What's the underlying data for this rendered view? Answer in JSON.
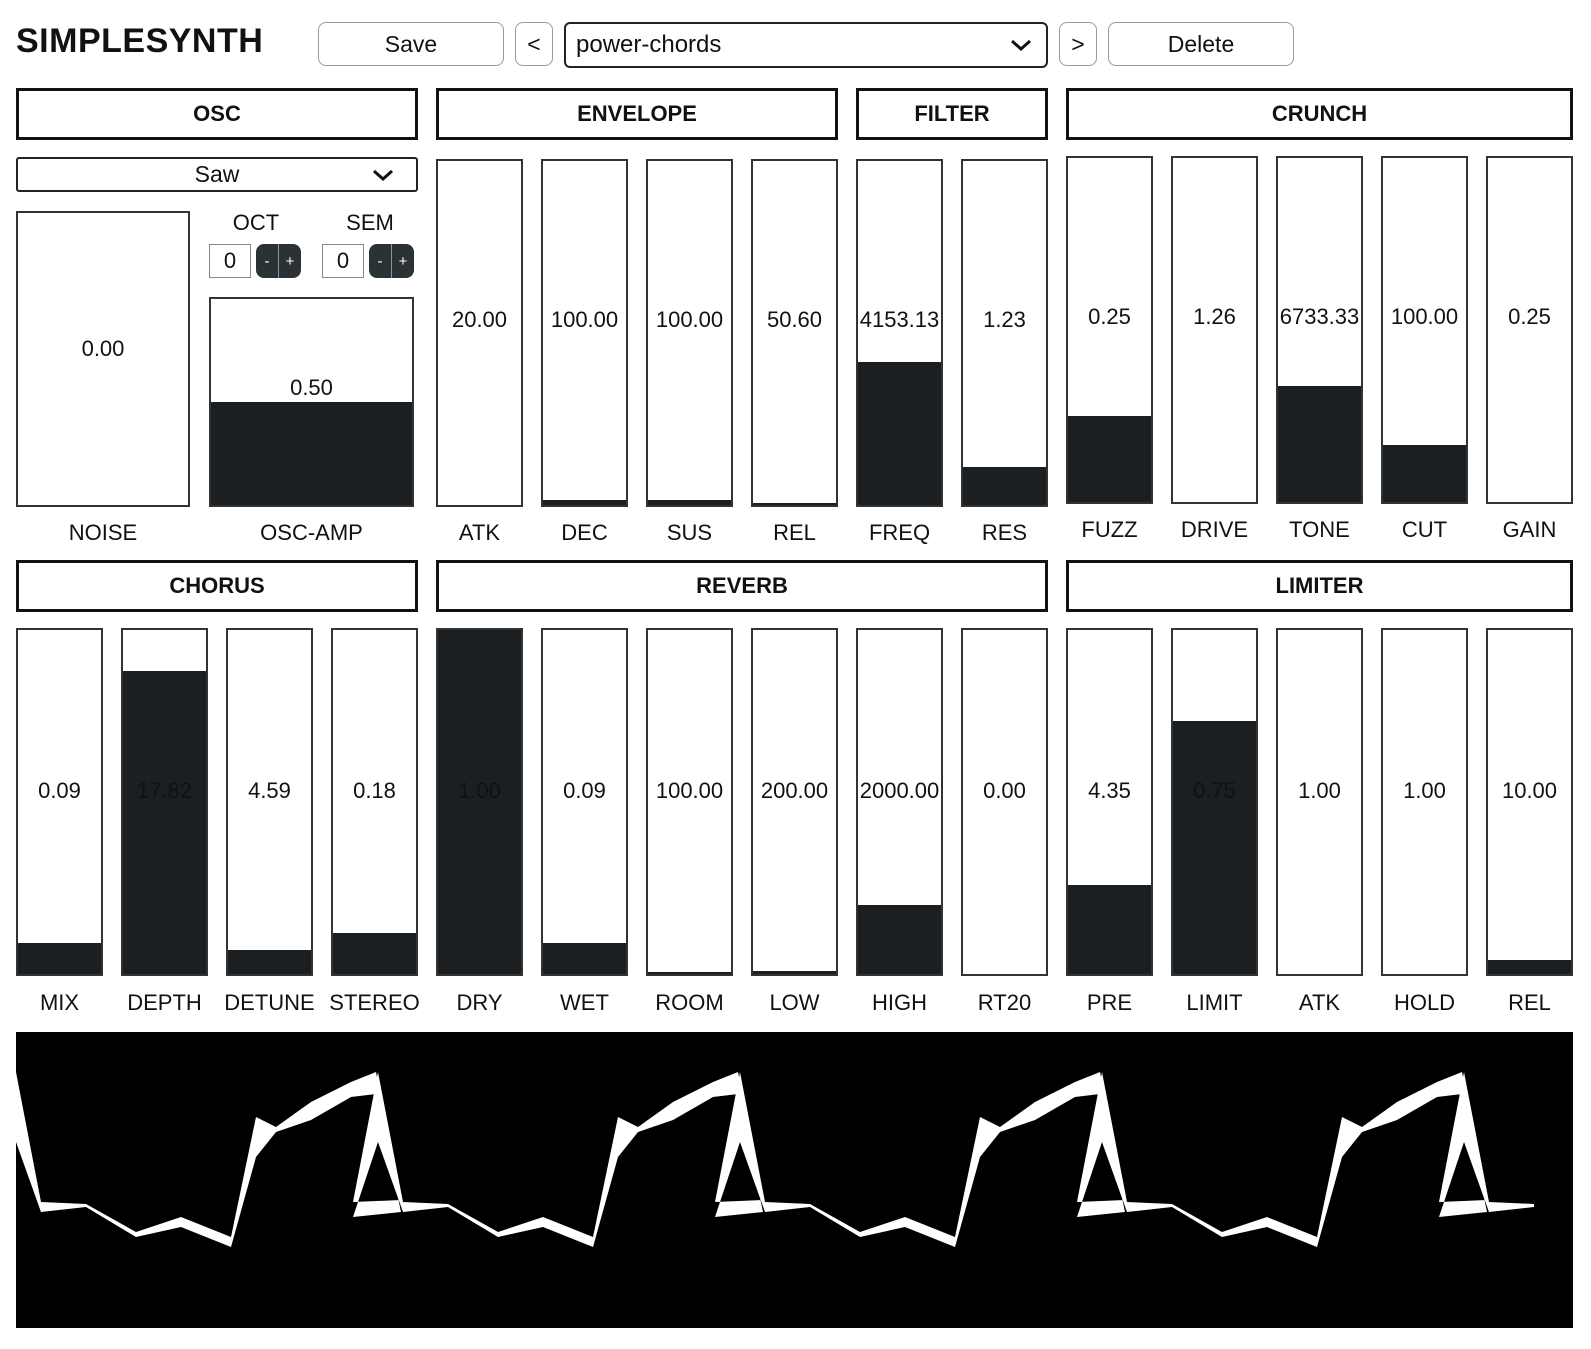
{
  "app": {
    "title": "SIMPLESYNTH"
  },
  "toolbar": {
    "save_label": "Save",
    "prev_label": "<",
    "next_label": ">",
    "delete_label": "Delete",
    "preset_value": "power-chords"
  },
  "sections": {
    "osc": "OSC",
    "envelope": "ENVELOPE",
    "filter": "FILTER",
    "crunch": "CRUNCH",
    "chorus": "CHORUS",
    "reverb": "REVERB",
    "limiter": "LIMITER"
  },
  "osc": {
    "waveform": "Saw",
    "oct_label": "OCT",
    "oct_value": "0",
    "sem_label": "SEM",
    "sem_value": "0",
    "minus": "-",
    "plus": "+"
  },
  "sliders": {
    "noise": {
      "label": "NOISE",
      "value": "0.00",
      "level": 0.0
    },
    "osc_amp": {
      "label": "OSC-AMP",
      "value": "0.50",
      "level": 0.5
    },
    "atk": {
      "label": "ATK",
      "value": "20.00",
      "level": 0.0
    },
    "dec": {
      "label": "DEC",
      "value": "100.00",
      "level": 0.015
    },
    "sus": {
      "label": "SUS",
      "value": "100.00",
      "level": 0.015
    },
    "rel": {
      "label": "REL",
      "value": "50.60",
      "level": 0.005
    },
    "freq": {
      "label": "FREQ",
      "value": "4153.13",
      "level": 0.415
    },
    "res": {
      "label": "RES",
      "value": "1.23",
      "level": 0.11
    },
    "fuzz": {
      "label": "FUZZ",
      "value": "0.25",
      "level": 0.25
    },
    "drive": {
      "label": "DRIVE",
      "value": "1.26",
      "level": 0.0
    },
    "tone": {
      "label": "TONE",
      "value": "6733.33",
      "level": 0.337
    },
    "cut": {
      "label": "CUT",
      "value": "100.00",
      "level": 0.167
    },
    "gain": {
      "label": "GAIN",
      "value": "0.25",
      "level": 0.0
    },
    "mix": {
      "label": "MIX",
      "value": "0.09",
      "level": 0.09
    },
    "depth": {
      "label": "DEPTH",
      "value": "17.82",
      "level": 0.88
    },
    "detune": {
      "label": "DETUNE",
      "value": "4.59",
      "level": 0.07
    },
    "stereo": {
      "label": "STEREO",
      "value": "0.18",
      "level": 0.12
    },
    "dry": {
      "label": "DRY",
      "value": "1.00",
      "level": 1.0
    },
    "wet": {
      "label": "WET",
      "value": "0.09",
      "level": 0.09
    },
    "room": {
      "label": "ROOM",
      "value": "100.00",
      "level": 0.005
    },
    "low": {
      "label": "LOW",
      "value": "200.00",
      "level": 0.01
    },
    "high": {
      "label": "HIGH",
      "value": "2000.00",
      "level": 0.2
    },
    "rt20": {
      "label": "RT20",
      "value": "0.00",
      "level": 0.0
    },
    "pre": {
      "label": "PRE",
      "value": "4.35",
      "level": 0.26
    },
    "limit": {
      "label": "LIMIT",
      "value": "0.75",
      "level": 0.735
    },
    "latk": {
      "label": "ATK",
      "value": "1.00",
      "level": 0.0
    },
    "hold": {
      "label": "HOLD",
      "value": "1.00",
      "level": 0.0
    },
    "lrel": {
      "label": "REL",
      "value": "10.00",
      "level": 0.04
    }
  },
  "scope": {
    "background": "#000000",
    "trace_color": "#ffffff"
  }
}
